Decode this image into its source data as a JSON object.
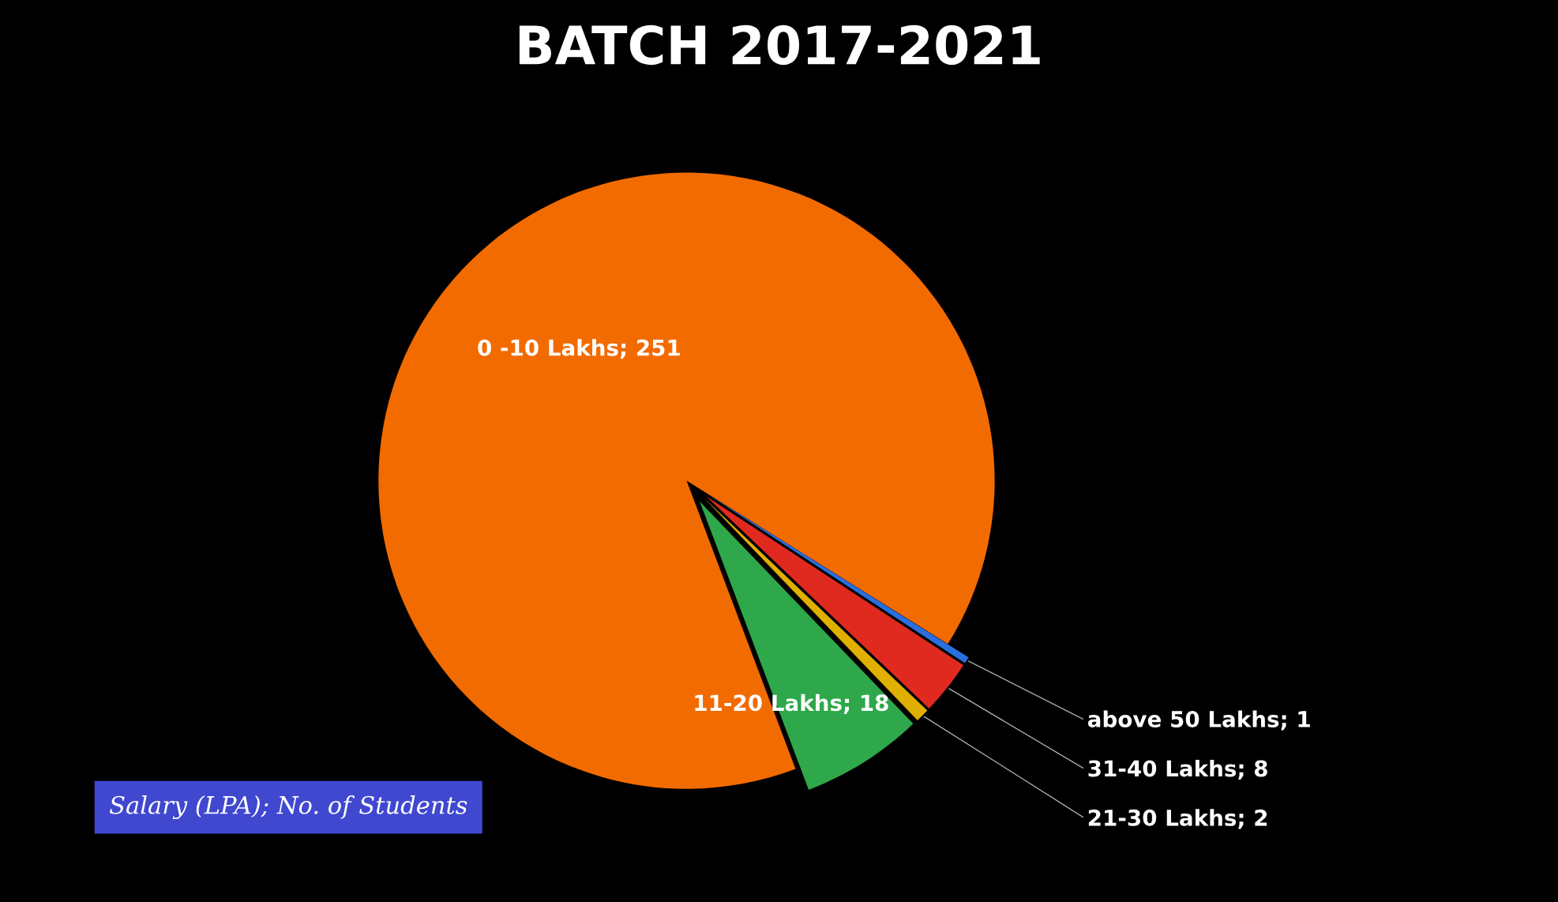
{
  "chart_data": {
    "type": "pie",
    "title": "BATCH 2017-2021",
    "categories": [
      "0 -10 Lakhs; 251",
      "11-20 Lakhs; 18",
      "21-30 Lakhs; 2",
      "31-40 Lakhs; 8",
      "above 50 Lakhs; 1"
    ],
    "values": [
      251,
      18,
      2,
      8,
      1
    ],
    "colors": [
      "#f26b00",
      "#2ea84a",
      "#e0b000",
      "#e02a20",
      "#2a6ee0"
    ],
    "annotations": [
      "Salary (LPA); No. of Students"
    ]
  }
}
